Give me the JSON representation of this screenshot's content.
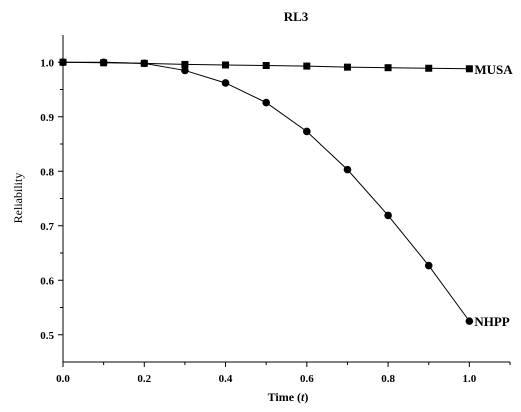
{
  "chart_data": {
    "type": "line",
    "title": "RL3",
    "xlabel_prefix": "Time (",
    "xlabel_var": "t",
    "xlabel_suffix": ")",
    "ylabel": "Reliability",
    "xlim": [
      0.0,
      1.1
    ],
    "ylim": [
      0.45,
      1.05
    ],
    "xticks": [
      "0.0",
      "0.2",
      "0.4",
      "0.6",
      "0.8",
      "1.0"
    ],
    "yticks": [
      "0.5",
      "0.6",
      "0.7",
      "0.8",
      "0.9",
      "1.0"
    ],
    "grid": false,
    "x": [
      0.0,
      0.1,
      0.2,
      0.3,
      0.4,
      0.5,
      0.6,
      0.7,
      0.8,
      0.9,
      1.0
    ],
    "series": [
      {
        "name": "MUSA",
        "marker": "square",
        "values": [
          1.0,
          0.999,
          0.998,
          0.996,
          0.995,
          0.994,
          0.993,
          0.991,
          0.99,
          0.989,
          0.988
        ]
      },
      {
        "name": "NHPP",
        "marker": "circle",
        "values": [
          1.0,
          1.0,
          0.998,
          0.985,
          0.962,
          0.926,
          0.873,
          0.803,
          0.719,
          0.627,
          0.525
        ]
      }
    ]
  }
}
